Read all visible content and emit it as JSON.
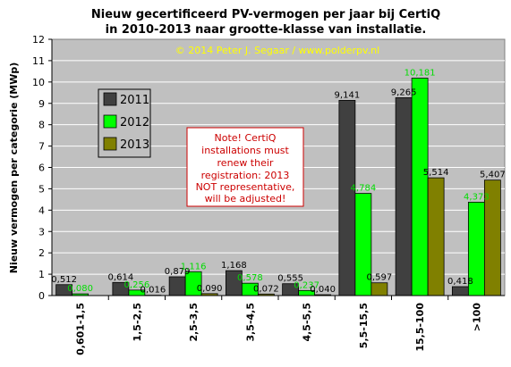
{
  "chart_data": {
    "type": "bar",
    "title": "Nieuw gecertificeerd PV-vermogen per jaar bij CertiQ",
    "subtitle": "in 2010-2013 naar grootte-klasse van installatie.",
    "copyright": "© 2014 Peter J. Segaar / www.polderpv.nl",
    "xlabel": "",
    "ylabel": "Nieuw vermogen per categorie (MWp)",
    "ylim": [
      0,
      12
    ],
    "yticks": [
      "0",
      "1",
      "2",
      "3",
      "4",
      "5",
      "6",
      "7",
      "8",
      "9",
      "10",
      "11",
      "12"
    ],
    "grid": true,
    "legend_position": "left",
    "categories": [
      "0,601-1,5",
      "1,5-2,5",
      "2,5-3,5",
      "3,5-4,5",
      "4,5-5,5",
      "5,5-15,5",
      "15,5-100",
      ">100"
    ],
    "series": [
      {
        "name": "2011",
        "color": "#404040",
        "label_color": "#000000",
        "values": [
          0.512,
          0.614,
          0.879,
          1.168,
          0.555,
          9.141,
          9.265,
          0.418
        ],
        "labels": [
          "0,512",
          "0,614",
          "0,879",
          "1,168",
          "0,555",
          "9,141",
          "9,265",
          "0,418"
        ]
      },
      {
        "name": "2012",
        "color": "#00ff00",
        "label_color": "#00dd00",
        "values": [
          0.08,
          0.256,
          1.116,
          0.578,
          0.237,
          4.784,
          10.181,
          4.373
        ],
        "labels": [
          "0,080",
          "0,256",
          "1,116",
          "0,578",
          "0,237",
          "4,784",
          "10,181",
          "4,373"
        ]
      },
      {
        "name": "2013",
        "color": "#808000",
        "label_color": "#000000",
        "values": [
          0.0,
          0.016,
          0.09,
          0.072,
          0.04,
          0.597,
          5.514,
          5.407
        ],
        "labels": [
          "",
          "0,016",
          "0,090",
          "0,072",
          "0,040",
          "0,597",
          "5,514",
          "5,407"
        ]
      }
    ],
    "annotation": {
      "lines": [
        "Note! CertiQ",
        "installations  must",
        "renew their",
        "registration: 2013",
        "NOT representative,",
        "will be adjusted!"
      ],
      "color": "#cc0000"
    },
    "colors": {
      "plot_background": "#c0c0c0",
      "grid": "#ffffff"
    }
  }
}
